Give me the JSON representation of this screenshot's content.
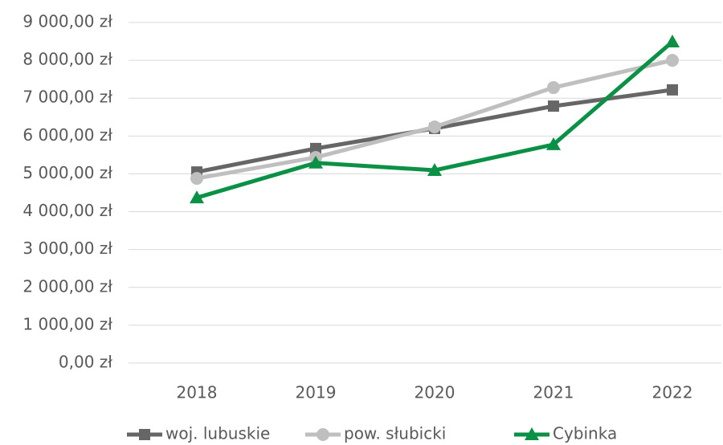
{
  "chart_data": {
    "type": "line",
    "categories": [
      "2018",
      "2019",
      "2020",
      "2021",
      "2022"
    ],
    "series": [
      {
        "name": "woj. lubuskie",
        "color": "#666666",
        "marker": "square",
        "values": [
          5050,
          5670,
          6200,
          6790,
          7220
        ]
      },
      {
        "name": "pow. słubicki",
        "color": "#bfbfbf",
        "marker": "circle",
        "values": [
          4880,
          5435,
          6240,
          7280,
          8000
        ]
      },
      {
        "name": "Cybinka",
        "color": "#0a9146",
        "marker": "triangle",
        "values": [
          4370,
          5290,
          5095,
          5775,
          8490
        ]
      }
    ],
    "ylim": [
      0,
      9000
    ],
    "yticks": [
      {
        "value": 0,
        "label": "0,00 zł"
      },
      {
        "value": 1000,
        "label": "1 000,00 zł"
      },
      {
        "value": 2000,
        "label": "2 000,00 zł"
      },
      {
        "value": 3000,
        "label": "3 000,00 zł"
      },
      {
        "value": 4000,
        "label": "4 000,00 zł"
      },
      {
        "value": 5000,
        "label": "5 000,00 zł"
      },
      {
        "value": 6000,
        "label": "6 000,00 zł"
      },
      {
        "value": 7000,
        "label": "7 000,00 zł"
      },
      {
        "value": 8000,
        "label": "8 000,00 zł"
      },
      {
        "value": 9000,
        "label": "9 000,00 zł"
      }
    ],
    "grid": true,
    "legend": "bottom"
  }
}
